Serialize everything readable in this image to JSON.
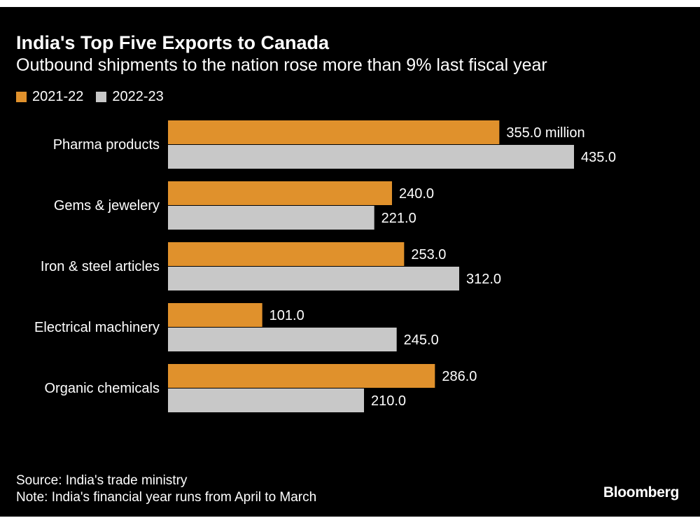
{
  "chart_data": {
    "type": "bar",
    "orientation": "horizontal",
    "title": "India's Top Five Exports to Canada",
    "subtitle": "Outbound shipments to the nation rose more than 9% last fiscal year",
    "categories": [
      "Pharma products",
      "Gems & jewelery",
      "Iron & steel articles",
      "Electrical machinery",
      "Organic chemicals"
    ],
    "series": [
      {
        "name": "2021-22",
        "values": [
          355.0,
          240.0,
          253.0,
          101.0,
          286.0
        ],
        "labels": [
          "355.0 million",
          "240.0",
          "253.0",
          "101.0",
          "286.0"
        ],
        "color": "#e0912c"
      },
      {
        "name": "2022-23",
        "values": [
          435.0,
          221.0,
          312.0,
          245.0,
          210.0
        ],
        "labels": [
          "435.0",
          "221.0",
          "312.0",
          "245.0",
          "210.0"
        ],
        "color": "#c8c8c8"
      }
    ],
    "xlim": [
      0,
      435
    ],
    "grid": false,
    "legend_placement": "top-left",
    "background": "#000000"
  },
  "footer": {
    "source": "Source: India's trade ministry",
    "note": "Note: India's financial year runs from April to March",
    "logo": "Bloomberg"
  }
}
